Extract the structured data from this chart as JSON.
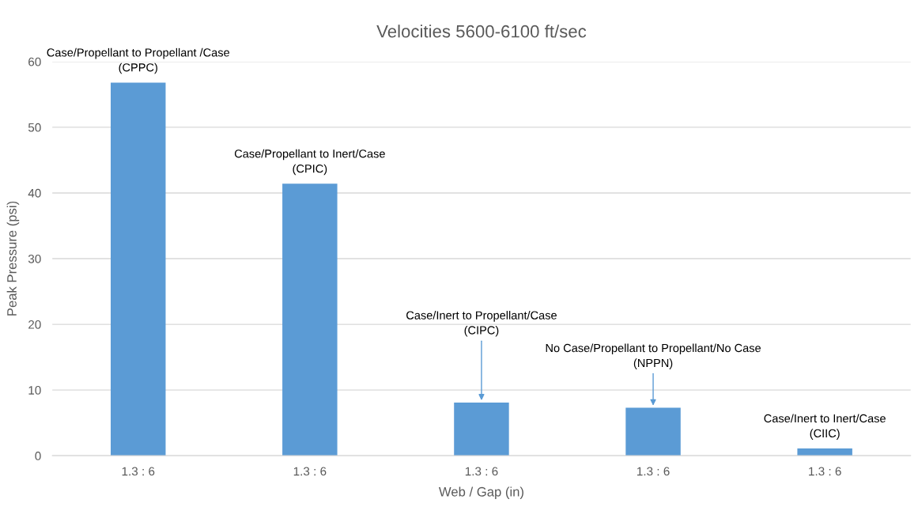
{
  "chart_data": {
    "type": "bar",
    "title": "Velocities 5600-6100 ft/sec",
    "xlabel": "Web / Gap (in)",
    "ylabel": "Peak Pressure (psi)",
    "categories": [
      "1.3 : 6",
      "1.3 : 6",
      "1.3 : 6",
      "1.3 : 6",
      "1.3 : 6"
    ],
    "values": [
      56.8,
      41.4,
      8.1,
      7.3,
      1.1
    ],
    "color": "#5b9bd5",
    "ylim": [
      0,
      60
    ],
    "yticks": [
      0,
      10,
      20,
      30,
      40,
      50,
      60
    ],
    "grid": "y",
    "legend": false,
    "annotations": [
      {
        "text": "Case/Propellant to Propellant /Case\n(CPPC)",
        "y": 56.8
      },
      {
        "text": "Case/Propellant to Inert/Case\n(CPIC)",
        "y": 41.4
      },
      {
        "text": "Case/Inert to Propellant/Case\n(CIPC)",
        "y": 8.1
      },
      {
        "text": "No Case/Propellant to Propellant/No Case\n(NPPN)",
        "y": 7.3
      },
      {
        "text": "Case/Inert to Inert/Case\n(CIIC)",
        "y": 1.1
      }
    ]
  }
}
